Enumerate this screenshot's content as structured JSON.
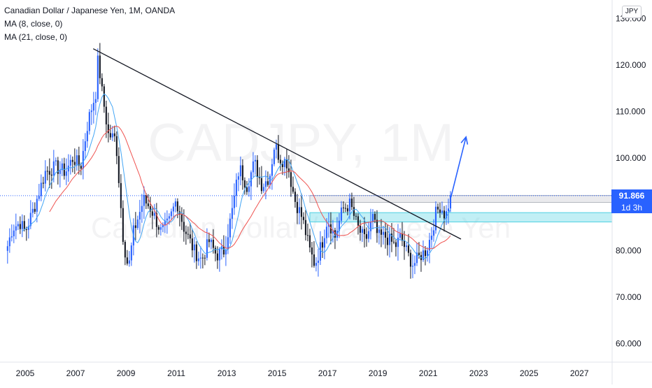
{
  "legend": {
    "title": "Canadian Dollar / Japanese Yen, 1M, OANDA",
    "ma8": "MA (8, close, 0)",
    "ma21": "MA (21, close, 0)"
  },
  "watermark": {
    "symbol": "CADJPY, 1M",
    "description": "Canadian Dollar / Japanese Yen"
  },
  "currency_badge": "JPY",
  "last_price": {
    "value": "91.866",
    "countdown": "1d 3h"
  },
  "colors": {
    "up": "#2962ff",
    "down": "#131722",
    "ma8": "#42a5f5",
    "ma21": "#ef5350",
    "trendline": "#131722",
    "support_zone": "#4dd0e1",
    "resistance_zone": "#b2b5be",
    "arrow": "#2962ff",
    "price_tag": "#2962ff"
  },
  "chart_data": {
    "type": "candlestick",
    "title": "Canadian Dollar / Japanese Yen, 1M, OANDA",
    "x_range": [
      2004.0,
      2028.3
    ],
    "y_range": [
      56.0,
      134.0
    ],
    "y_ticks": [
      "60.000",
      "70.000",
      "80.000",
      "90.000",
      "100.000",
      "110.000",
      "120.000",
      "130.000"
    ],
    "x_ticks": [
      "2005",
      "2007",
      "2009",
      "2011",
      "2013",
      "2015",
      "2017",
      "2019",
      "2021",
      "2023",
      "2025",
      "2027"
    ],
    "last_price": 91.866,
    "price_path": [
      [
        2004.3,
        81
      ],
      [
        2004.5,
        85
      ],
      [
        2004.8,
        86
      ],
      [
        2005.0,
        84
      ],
      [
        2005.4,
        90
      ],
      [
        2005.8,
        97
      ],
      [
        2006.2,
        98
      ],
      [
        2006.6,
        97
      ],
      [
        2006.9,
        100
      ],
      [
        2007.2,
        98
      ],
      [
        2007.5,
        108
      ],
      [
        2007.8,
        114
      ],
      [
        2007.9,
        122
      ],
      [
        2008.0,
        116
      ],
      [
        2008.3,
        105
      ],
      [
        2008.6,
        104
      ],
      [
        2008.9,
        82
      ],
      [
        2009.1,
        76
      ],
      [
        2009.3,
        84
      ],
      [
        2009.7,
        91
      ],
      [
        2010.0,
        89
      ],
      [
        2010.4,
        84
      ],
      [
        2010.7,
        86
      ],
      [
        2011.0,
        91
      ],
      [
        2011.3,
        85
      ],
      [
        2011.7,
        80
      ],
      [
        2012.0,
        78
      ],
      [
        2012.3,
        82
      ],
      [
        2012.6,
        79
      ],
      [
        2012.9,
        80
      ],
      [
        2013.2,
        88
      ],
      [
        2013.5,
        98
      ],
      [
        2013.8,
        94
      ],
      [
        2014.1,
        99
      ],
      [
        2014.4,
        94
      ],
      [
        2014.7,
        96
      ],
      [
        2014.9,
        103
      ],
      [
        2015.1,
        100
      ],
      [
        2015.4,
        99
      ],
      [
        2015.7,
        91
      ],
      [
        2016.0,
        87
      ],
      [
        2016.3,
        80
      ],
      [
        2016.5,
        77
      ],
      [
        2016.8,
        82
      ],
      [
        2017.0,
        87
      ],
      [
        2017.3,
        83
      ],
      [
        2017.6,
        89
      ],
      [
        2017.9,
        90
      ],
      [
        2018.2,
        85
      ],
      [
        2018.5,
        82
      ],
      [
        2018.8,
        87
      ],
      [
        2019.0,
        83
      ],
      [
        2019.3,
        83
      ],
      [
        2019.7,
        81
      ],
      [
        2019.9,
        83
      ],
      [
        2020.2,
        79
      ],
      [
        2020.4,
        77
      ],
      [
        2020.7,
        79
      ],
      [
        2020.9,
        80
      ],
      [
        2021.1,
        83
      ],
      [
        2021.3,
        88
      ],
      [
        2021.5,
        90
      ],
      [
        2021.6,
        88
      ],
      [
        2021.75,
        88
      ],
      [
        2021.85,
        91.9
      ]
    ],
    "annotations": {
      "trendline": {
        "from": [
          2007.7,
          123.5
        ],
        "to": [
          2022.3,
          82.5
        ]
      },
      "resistance_zone": {
        "y": [
          90.4,
          91.9
        ],
        "x_start": 2016.3
      },
      "support_zone": {
        "y": [
          86.2,
          88.2
        ],
        "x_start": 2016.3
      },
      "projection_arrow": {
        "from": [
          2021.9,
          91.5
        ],
        "to": [
          2022.5,
          104.5
        ]
      },
      "last_price_line": 91.866
    }
  }
}
